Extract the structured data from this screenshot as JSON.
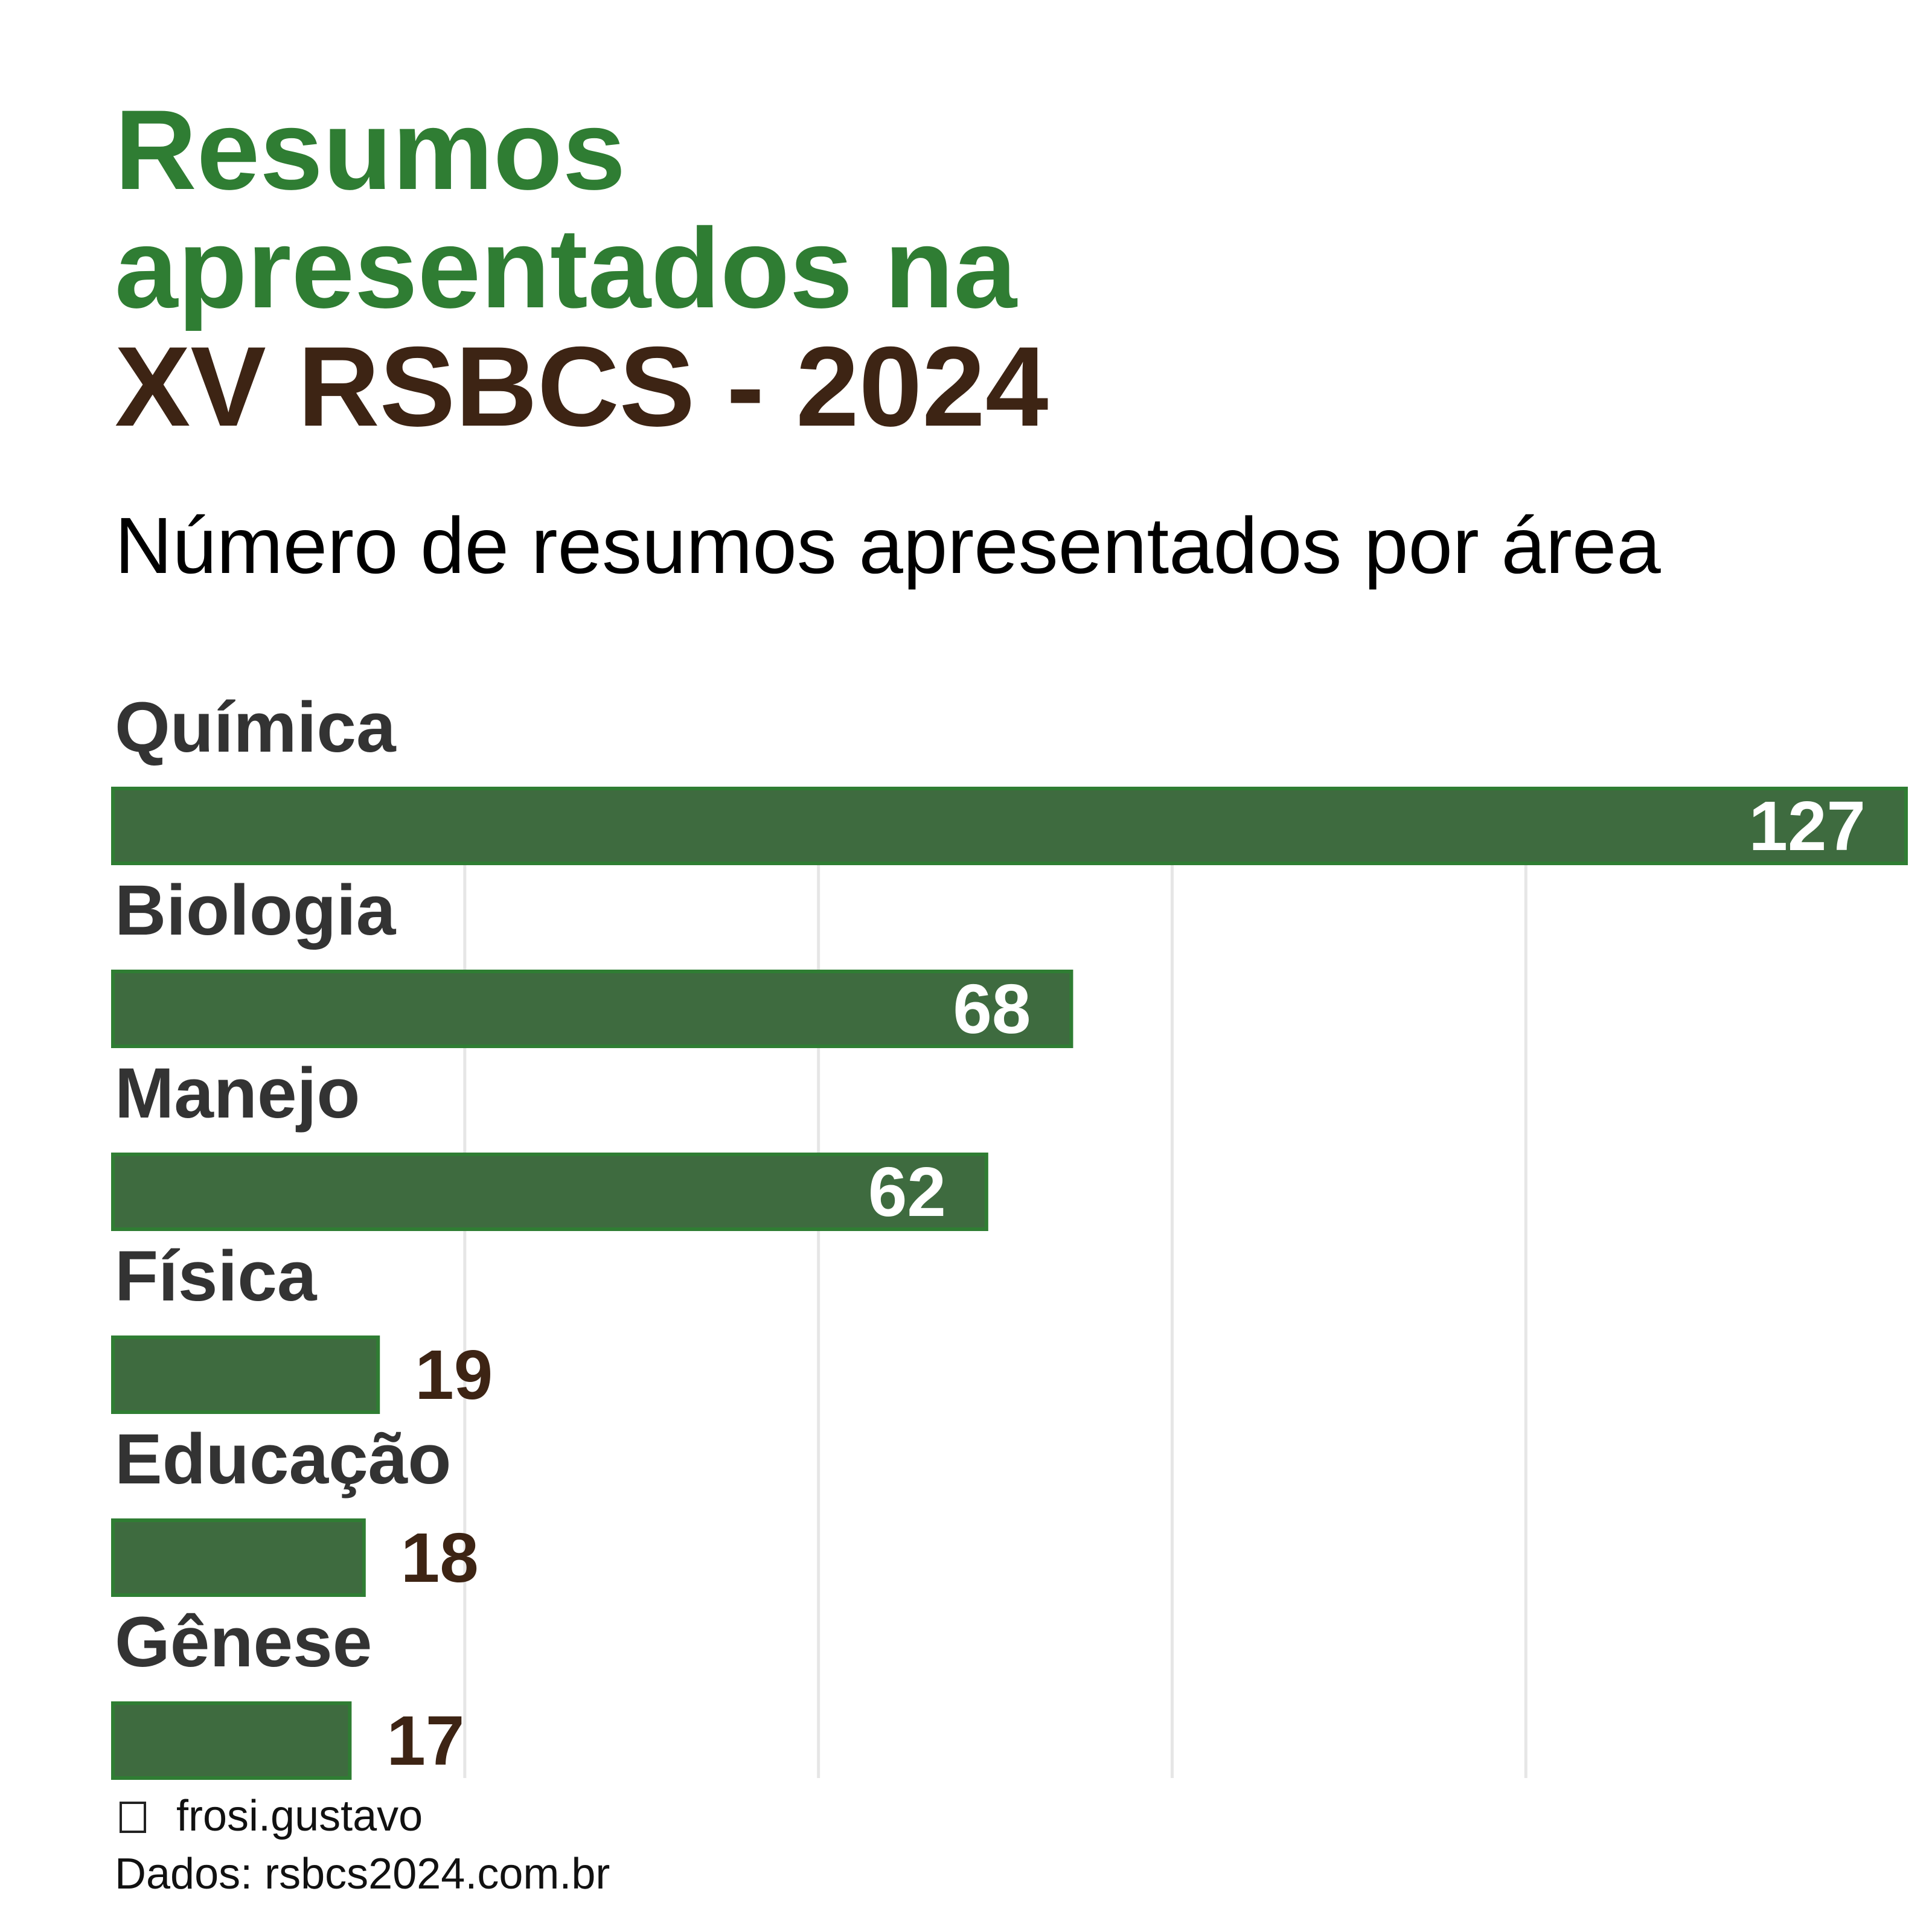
{
  "header": {
    "title_line1": "Resumos",
    "title_line2": "apresentados na",
    "title_line3": "XV RSBCS - 2024",
    "subtitle": "Número de resumos apresentados por área"
  },
  "colors": {
    "title_green": "#2f7d33",
    "title_brown": "#3d2414",
    "bar_fill": "#3e6b3f",
    "bar_stroke": "#2f7d33",
    "category_label": "#333333",
    "value_inside": "#ffffff",
    "value_outside": "#3d2414",
    "gridline": "#e6e6e6"
  },
  "chart_data": {
    "type": "bar",
    "orientation": "horizontal",
    "categories": [
      "Química",
      "Biologia",
      "Manejo",
      "Física",
      "Educação",
      "Gênese"
    ],
    "values": [
      127,
      68,
      62,
      19,
      18,
      17
    ],
    "title": "Resumos apresentados na XV RSBCS - 2024",
    "subtitle": "Número de resumos apresentados por área",
    "xlabel": "",
    "ylabel": "",
    "xlim": [
      0,
      127
    ],
    "gridlines": [
      25,
      50,
      75,
      100
    ],
    "grid": true,
    "legend": "none"
  },
  "footer": {
    "author_icon": "instagram-icon",
    "author": "frosi.gustavo",
    "source": "Dados: rsbcs2024.com.br"
  }
}
